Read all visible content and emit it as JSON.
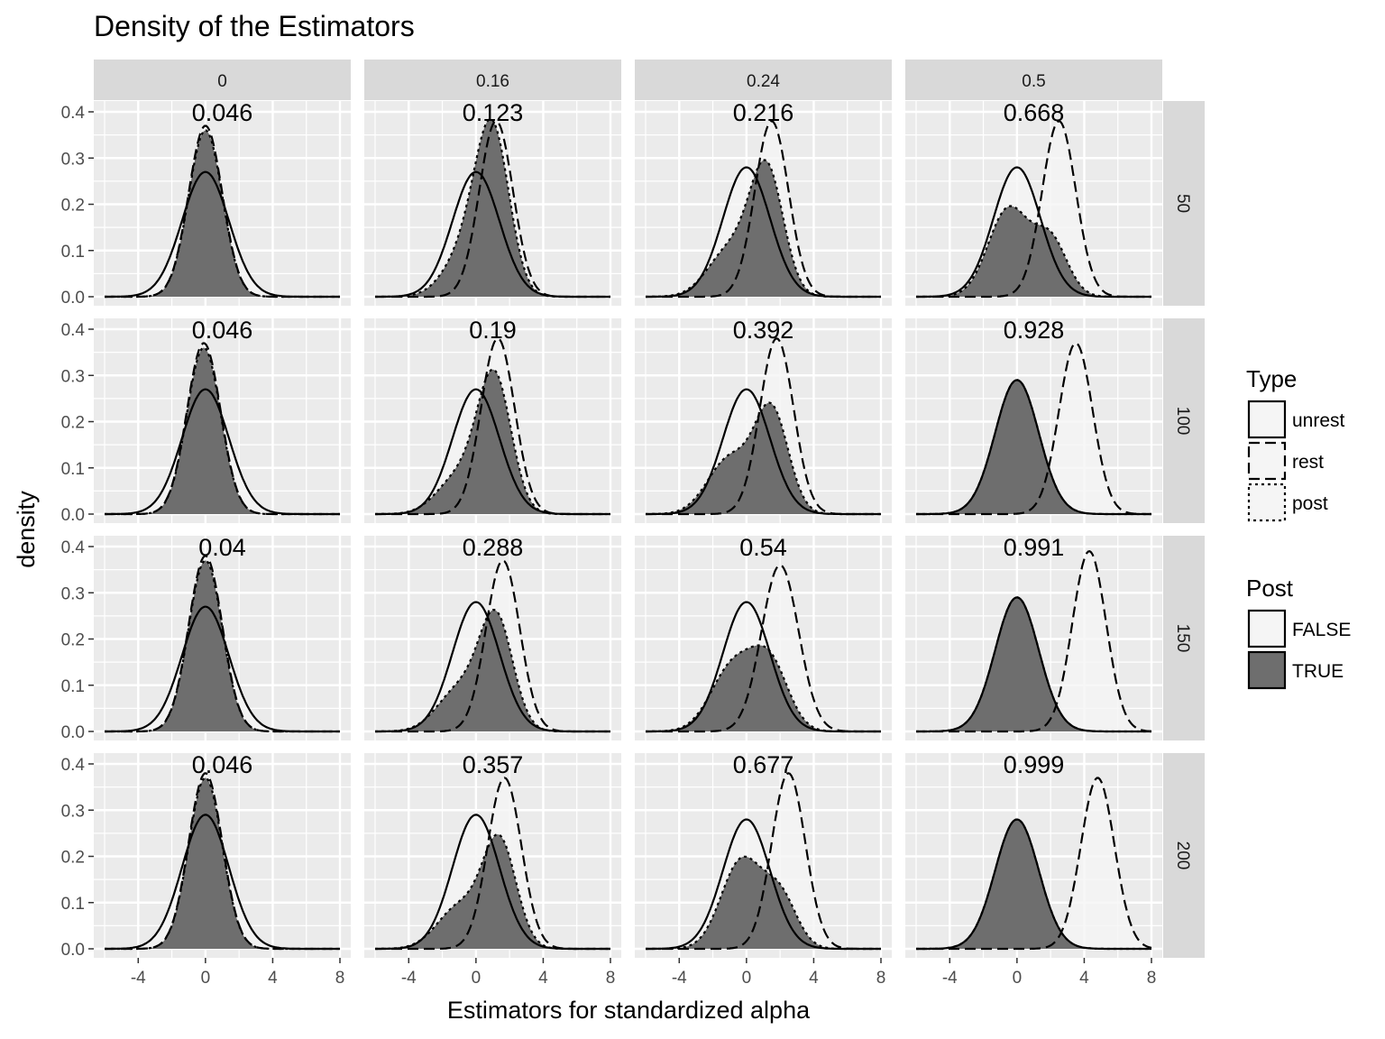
{
  "chart_data": {
    "type": "area",
    "title": "Density of the Estimators",
    "xlabel": "Estimators for standardized alpha",
    "ylabel": "density",
    "xlim": [
      -6,
      8
    ],
    "ylim": [
      0,
      0.4
    ],
    "x_ticks": [
      "-4",
      "0",
      "4",
      "8"
    ],
    "y_ticks": [
      "0.0",
      "0.1",
      "0.2",
      "0.3",
      "0.4"
    ],
    "columns": [
      "0",
      "0.16",
      "0.24",
      "0.5"
    ],
    "rows": [
      "50",
      "100",
      "150",
      "200"
    ],
    "grid": true,
    "legend_position": "right",
    "legend": {
      "type_title": "Type",
      "types": [
        {
          "label": "unrest",
          "linestyle": "solid"
        },
        {
          "label": "rest",
          "linestyle": "dashed"
        },
        {
          "label": "post",
          "linestyle": "dotted"
        }
      ],
      "post_title": "Post",
      "posts": [
        {
          "label": "FALSE",
          "color": "#f5f5f5"
        },
        {
          "label": "TRUE",
          "color": "#6e6e6e"
        }
      ]
    },
    "colors": {
      "panel_bg": "#ebebeb",
      "grid": "#ffffff",
      "strip_bg": "#d9d9d9",
      "fill_false": "#f5f5f5",
      "fill_true": "#6e6e6e",
      "line": "#000000"
    },
    "panels": [
      {
        "row": "50",
        "col": "0",
        "annotation": "0.046",
        "unrest": {
          "center": 0,
          "peak": 0.27,
          "sd": 1.4
        },
        "rest": {
          "center": 0,
          "peak": 0.37,
          "sd": 1.0
        },
        "post": {
          "mix": [
            [
              0,
              0.36,
              1.0
            ]
          ],
          "fill": "TRUE"
        }
      },
      {
        "row": "50",
        "col": "0.16",
        "annotation": "0.123",
        "unrest": {
          "center": 0,
          "peak": 0.27,
          "sd": 1.4
        },
        "rest": {
          "center": 1.2,
          "peak": 0.38,
          "sd": 1.0
        },
        "post": {
          "mix": [
            [
              1.0,
              0.33,
              1.0
            ],
            [
              -0.5,
              0.1,
              1.3
            ]
          ],
          "fill": "TRUE"
        }
      },
      {
        "row": "50",
        "col": "0.24",
        "annotation": "0.216",
        "unrest": {
          "center": 0,
          "peak": 0.28,
          "sd": 1.4
        },
        "rest": {
          "center": 1.5,
          "peak": 0.38,
          "sd": 1.0
        },
        "post": {
          "mix": [
            [
              1.2,
              0.27,
              1.0
            ],
            [
              -1.0,
              0.1,
              1.3
            ]
          ],
          "fill": "TRUE"
        }
      },
      {
        "row": "50",
        "col": "0.5",
        "annotation": "0.668",
        "unrest": {
          "center": 0,
          "peak": 0.28,
          "sd": 1.4
        },
        "rest": {
          "center": 2.5,
          "peak": 0.38,
          "sd": 1.0
        },
        "post": {
          "mix": [
            [
              -0.5,
              0.19,
              1.2
            ],
            [
              2.0,
              0.12,
              1.0
            ]
          ],
          "fill": "TRUE"
        }
      },
      {
        "row": "100",
        "col": "0",
        "annotation": "0.046",
        "unrest": {
          "center": 0,
          "peak": 0.27,
          "sd": 1.4
        },
        "rest": {
          "center": -0.1,
          "peak": 0.37,
          "sd": 1.0
        },
        "post": {
          "mix": [
            [
              -0.1,
              0.36,
              1.0
            ]
          ],
          "fill": "TRUE"
        }
      },
      {
        "row": "100",
        "col": "0.16",
        "annotation": "0.19",
        "unrest": {
          "center": 0,
          "peak": 0.27,
          "sd": 1.4
        },
        "rest": {
          "center": 1.3,
          "peak": 0.38,
          "sd": 1.0
        },
        "post": {
          "mix": [
            [
              1.1,
              0.29,
              1.0
            ],
            [
              -1.0,
              0.08,
              1.3
            ]
          ],
          "fill": "TRUE"
        }
      },
      {
        "row": "100",
        "col": "0.24",
        "annotation": "0.392",
        "unrest": {
          "center": 0,
          "peak": 0.27,
          "sd": 1.4
        },
        "rest": {
          "center": 1.8,
          "peak": 0.38,
          "sd": 1.0
        },
        "post": {
          "mix": [
            [
              1.5,
              0.22,
              1.0
            ],
            [
              -1.0,
              0.12,
              1.3
            ]
          ],
          "fill": "TRUE"
        }
      },
      {
        "row": "100",
        "col": "0.5",
        "annotation": "0.928",
        "unrest": {
          "center": 0,
          "peak": 0.29,
          "sd": 1.3
        },
        "rest": {
          "center": 3.5,
          "peak": 0.37,
          "sd": 1.0
        },
        "post": {
          "mix": [
            [
              0,
              0.29,
              1.3
            ]
          ],
          "fill": "TRUE"
        }
      },
      {
        "row": "150",
        "col": "0",
        "annotation": "0.04",
        "unrest": {
          "center": 0,
          "peak": 0.27,
          "sd": 1.4
        },
        "rest": {
          "center": 0,
          "peak": 0.38,
          "sd": 1.0
        },
        "post": {
          "mix": [
            [
              0,
              0.37,
              1.0
            ]
          ],
          "fill": "TRUE"
        }
      },
      {
        "row": "150",
        "col": "0.16",
        "annotation": "0.288",
        "unrest": {
          "center": 0,
          "peak": 0.28,
          "sd": 1.4
        },
        "rest": {
          "center": 1.6,
          "peak": 0.37,
          "sd": 1.0
        },
        "post": {
          "mix": [
            [
              1.2,
              0.24,
              1.0
            ],
            [
              -1.0,
              0.09,
              1.3
            ]
          ],
          "fill": "TRUE"
        }
      },
      {
        "row": "150",
        "col": "0.24",
        "annotation": "0.54",
        "unrest": {
          "center": 0,
          "peak": 0.28,
          "sd": 1.4
        },
        "rest": {
          "center": 2.0,
          "peak": 0.36,
          "sd": 1.1
        },
        "post": {
          "mix": [
            [
              -0.8,
              0.14,
              1.3
            ],
            [
              1.4,
              0.14,
              1.1
            ]
          ],
          "fill": "TRUE"
        }
      },
      {
        "row": "150",
        "col": "0.5",
        "annotation": "0.991",
        "unrest": {
          "center": 0,
          "peak": 0.29,
          "sd": 1.3
        },
        "rest": {
          "center": 4.3,
          "peak": 0.39,
          "sd": 1.0
        },
        "post": {
          "mix": [
            [
              0,
              0.29,
              1.3
            ]
          ],
          "fill": "TRUE"
        }
      },
      {
        "row": "200",
        "col": "0",
        "annotation": "0.046",
        "unrest": {
          "center": 0,
          "peak": 0.29,
          "sd": 1.4
        },
        "rest": {
          "center": 0,
          "peak": 0.38,
          "sd": 1.0
        },
        "post": {
          "mix": [
            [
              0,
              0.37,
              1.0
            ]
          ],
          "fill": "TRUE"
        }
      },
      {
        "row": "200",
        "col": "0.16",
        "annotation": "0.357",
        "unrest": {
          "center": 0,
          "peak": 0.29,
          "sd": 1.4
        },
        "rest": {
          "center": 1.7,
          "peak": 0.37,
          "sd": 1.0
        },
        "post": {
          "mix": [
            [
              1.4,
              0.23,
              1.0
            ],
            [
              -1.0,
              0.09,
              1.3
            ]
          ],
          "fill": "TRUE"
        }
      },
      {
        "row": "200",
        "col": "0.24",
        "annotation": "0.677",
        "unrest": {
          "center": 0,
          "peak": 0.28,
          "sd": 1.4
        },
        "rest": {
          "center": 2.5,
          "peak": 0.38,
          "sd": 1.0
        },
        "post": {
          "mix": [
            [
              -0.3,
              0.19,
              1.2
            ],
            [
              2.0,
              0.11,
              1.0
            ]
          ],
          "fill": "TRUE"
        }
      },
      {
        "row": "200",
        "col": "0.5",
        "annotation": "0.999",
        "unrest": {
          "center": 0,
          "peak": 0.28,
          "sd": 1.3
        },
        "rest": {
          "center": 4.8,
          "peak": 0.37,
          "sd": 1.0
        },
        "post": {
          "mix": [
            [
              0,
              0.28,
              1.3
            ]
          ],
          "fill": "TRUE"
        }
      }
    ]
  }
}
